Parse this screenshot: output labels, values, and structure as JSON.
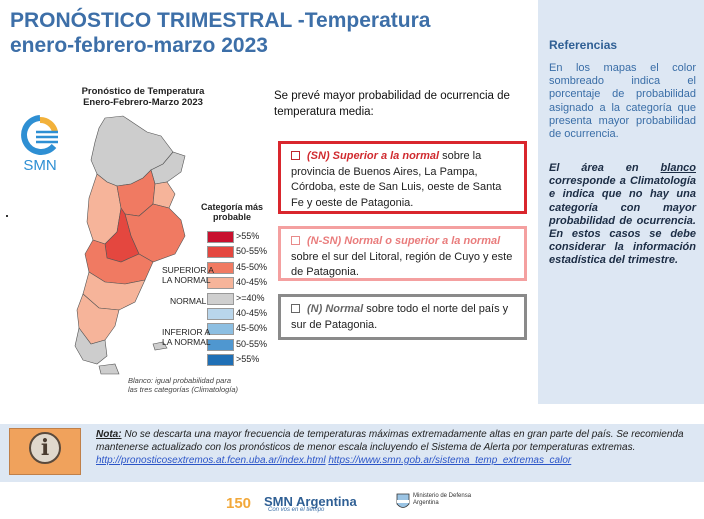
{
  "header": {
    "title_line1": "PRONÓSTICO TRIMESTRAL -Temperatura",
    "title_line2": "enero-febrero-marzo 2023"
  },
  "references": {
    "title": "Referencias",
    "text1": "En los mapas el color sombreado indica el porcentaje de probabilidad asignado a la categoría que presenta mayor probabilidad de ocurrencia.",
    "text2_pre": "El área en ",
    "text2_u": "blanco",
    "text2_post": " corresponde a Climatología e indica que no hay una categoría con mayor probabilidad de ocurrencia. En estos casos se debe considerar la información estadística del trimestre."
  },
  "map": {
    "title_line1": "Pronóstico de Temperatura",
    "title_line2": "Enero-Febrero-Marzo 2023",
    "logo_text": "SMN",
    "legend_title_line1": "Categoría más",
    "legend_title_line2": "probable",
    "legend": [
      {
        "label": ">55%",
        "color": "#c8102e"
      },
      {
        "label": "50-55%",
        "color": "#e4473f"
      },
      {
        "label": "45-50%",
        "color": "#f07a62"
      },
      {
        "label": "40-45%",
        "color": "#f6b49a"
      },
      {
        "label": ">=40%",
        "color": "#cfcfcf"
      },
      {
        "label": "40-45%",
        "color": "#b9d6ec"
      },
      {
        "label": "45-50%",
        "color": "#8dbfe2"
      },
      {
        "label": "50-55%",
        "color": "#4f97d0"
      },
      {
        "label": ">55%",
        "color": "#1f6fb5"
      }
    ],
    "category_superior_line1": "SUPERIOR A",
    "category_superior_line2": "LA NORMAL",
    "category_normal": "NORMAL",
    "category_inferior_line1": "INFERIOR A",
    "category_inferior_line2": "LA NORMAL",
    "note_line1": "Blanco: igual probabilidad para",
    "note_line2": "las tres categorías (Climatología)"
  },
  "forecast": {
    "intro": "Se prevé mayor probabilidad de ocurrencia de temperatura media:",
    "items": [
      {
        "key": "(SN) Superior a la normal",
        "text": " sobre la provincia de Buenos Aires, La Pampa, Córdoba, este de San Luis, oeste de Santa Fe y oeste de Patagonia."
      },
      {
        "key": "(N-SN) Normal o superior a la normal",
        "text": " sobre el sur del Litoral, región de Cuyo y este de Patagonia."
      },
      {
        "key": "(N) Normal",
        "text": " sobre todo el norte del país y sur de Patagonia."
      }
    ]
  },
  "note": {
    "label": "Nota:",
    "text": " No se descarta una mayor frecuencia de temperaturas máximas extremadamente altas en gran parte del país. Se recomienda mantenerse actualizado con los pronósticos de menor escala incluyendo el Sistema de Alerta por temperaturas extremas.",
    "link1": "http://pronosticosextremos.at.fcen.uba.ar/index.html",
    "link2": "https://www.smn.gob.ar/sistema_temp_extremas_calor"
  },
  "footer": {
    "brand_number": "150",
    "brand_name": "SMN Argentina",
    "brand_sub": "Con vos en el tiempo",
    "ministry_line1": "Ministerio de Defensa",
    "ministry_line2": "Argentina"
  },
  "icons": {
    "info": "info-icon",
    "checkbox": "checkbox-icon",
    "logo": "smn-logo-icon"
  }
}
